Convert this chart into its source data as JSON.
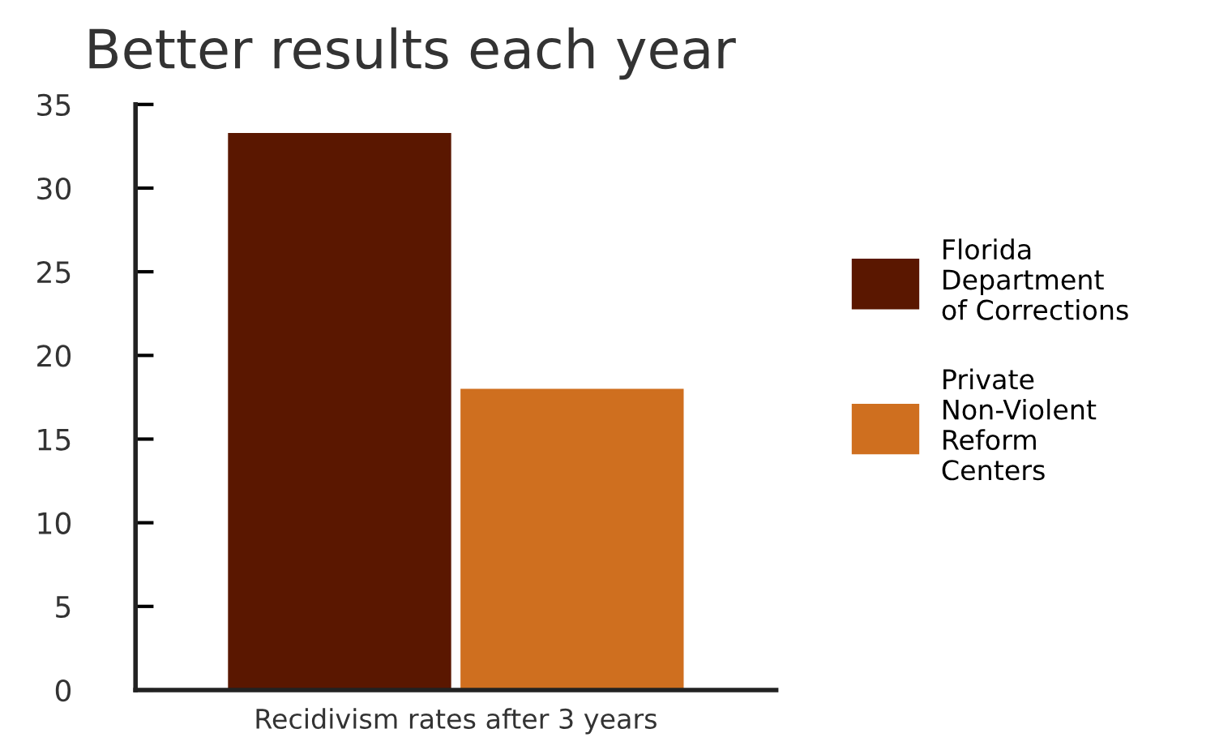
{
  "chart_data": {
    "type": "bar",
    "title": "Better results each year",
    "categories": [
      "Recidivism rates after 3 years"
    ],
    "series": [
      {
        "name": "Florida\nDepartment\nof Corrections",
        "color": "#5a1700",
        "values": [
          33.3
        ]
      },
      {
        "name": "Private\nNon-Violent\nReform\nCenters",
        "color": "#cf6f1f",
        "values": [
          18.0
        ]
      }
    ],
    "ylim": [
      0,
      35
    ],
    "yticks": [
      0,
      5,
      10,
      15,
      20,
      25,
      30,
      35
    ],
    "grid": false,
    "legend": "right"
  }
}
